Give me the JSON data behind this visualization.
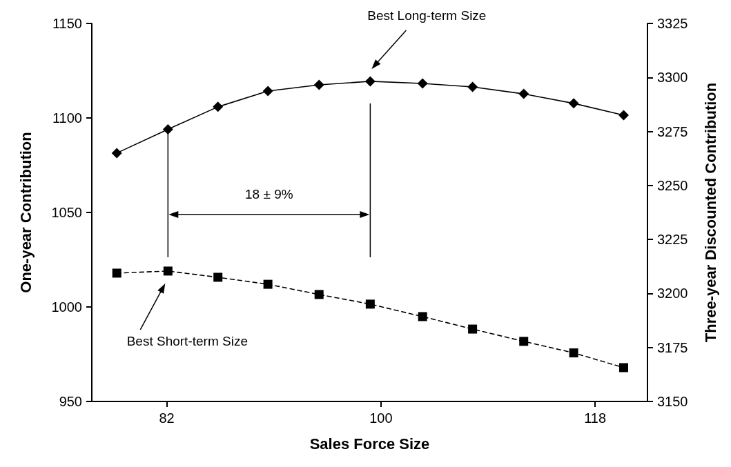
{
  "chart_data": {
    "type": "line",
    "xlabel": "Sales Force Size",
    "ylabel": "One-year Contribution",
    "y2label": "Three-year Discounted Contribution",
    "x": [
      77.8,
      82.1,
      86.3,
      90.5,
      94.8,
      99.1,
      103.5,
      107.7,
      112.0,
      116.2,
      120.4
    ],
    "series": [
      {
        "color": "#000000",
        "axis": "y2",
        "marker": "diamond",
        "line_style": "solid",
        "values": [
          3265,
          3276,
          3286.4,
          3293.7,
          3296.6,
          3298.2,
          3297.2,
          3295.6,
          3292.4,
          3288,
          3282.5
        ]
      },
      {
        "color": "#000000",
        "marker": "square",
        "line_style": "dashed",
        "values": [
          1017.9,
          1019,
          1015.7,
          1012,
          1006.6,
          1001.5,
          994.9,
          988.3,
          981.8,
          975.7,
          967.9
        ]
      }
    ],
    "xlim": [
      75.7,
      122.4
    ],
    "xticks": [
      82,
      100,
      118
    ],
    "ylim": [
      950,
      1150
    ],
    "yticks": [
      950,
      1000,
      1050,
      1100,
      1150
    ],
    "y2lim": [
      3150,
      3325
    ],
    "y2ticks": [
      3150,
      3175,
      3200,
      3225,
      3250,
      3275,
      3300,
      3325
    ],
    "grid": false,
    "ref_lines": [
      {
        "axis": "x",
        "value": 82.1,
        "color": "#000000"
      },
      {
        "axis": "x",
        "value": 99.1,
        "color": "#000000"
      }
    ],
    "annotations": [
      "Best Long-term Size",
      "18 ± 9%",
      "Best Short-term Size"
    ]
  }
}
